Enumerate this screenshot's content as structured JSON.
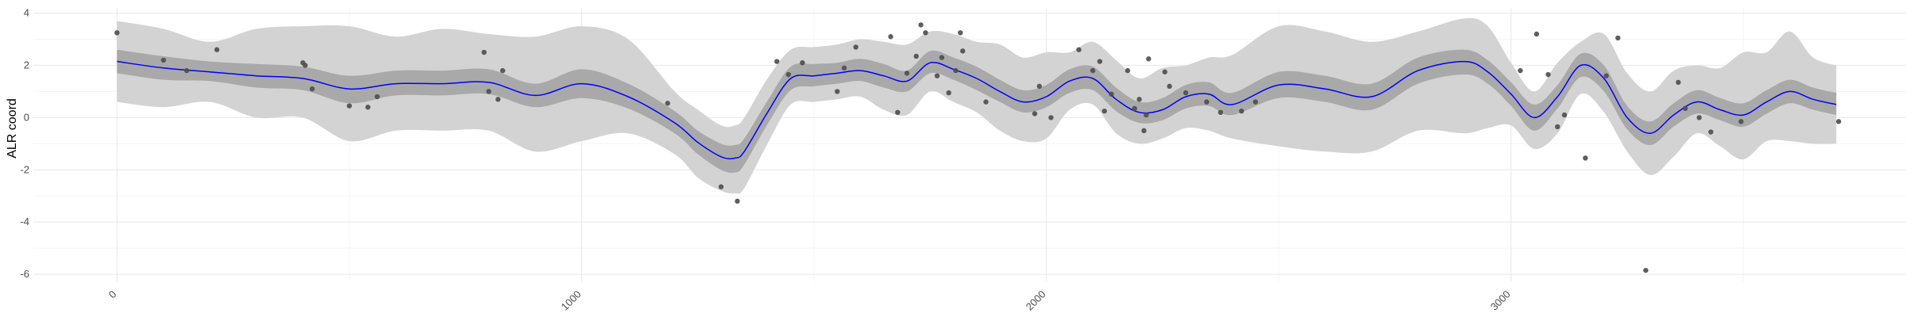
{
  "chart_data": {
    "type": "line",
    "title": "",
    "xlabel": "",
    "ylabel": "ALR coord",
    "xlim": [
      -180,
      3850
    ],
    "ylim": [
      -6.3,
      4.2
    ],
    "x_ticks": [
      0,
      1000,
      2000,
      3000
    ],
    "y_ticks": [
      -6,
      -4,
      -2,
      0,
      2,
      4
    ],
    "grid": true,
    "legend": "none",
    "colors": {
      "mean_line": "#0000ff",
      "inner_band": "#a9a9a9",
      "outer_band": "#d3d3d3",
      "points": "#4d4d4d",
      "grid_major": "#ebebeb",
      "grid_minor": "#f5f5f5"
    },
    "series": [
      {
        "kind": "mean",
        "x": [
          0,
          100,
          200,
          300,
          400,
          500,
          600,
          700,
          800,
          900,
          1000,
          1100,
          1200,
          1250,
          1300,
          1330,
          1350,
          1400,
          1450,
          1500,
          1550,
          1600,
          1650,
          1700,
          1750,
          1800,
          1850,
          1900,
          1950,
          2000,
          2050,
          2100,
          2150,
          2200,
          2250,
          2300,
          2350,
          2400,
          2500,
          2600,
          2700,
          2800,
          2900,
          2950,
          3000,
          3050,
          3100,
          3150,
          3200,
          3250,
          3300,
          3350,
          3400,
          3450,
          3500,
          3550,
          3600,
          3650,
          3700
        ],
        "y": [
          2.15,
          1.9,
          1.75,
          1.6,
          1.5,
          1.1,
          1.3,
          1.3,
          1.35,
          0.85,
          1.3,
          0.8,
          -0.2,
          -0.95,
          -1.5,
          -1.55,
          -1.3,
          0.2,
          1.5,
          1.6,
          1.7,
          1.8,
          1.6,
          1.4,
          2.1,
          1.85,
          1.5,
          1.0,
          0.6,
          0.8,
          1.4,
          1.5,
          0.7,
          0.2,
          0.3,
          0.8,
          0.9,
          0.5,
          1.25,
          1.1,
          0.8,
          1.8,
          2.15,
          1.75,
          0.9,
          0.0,
          0.8,
          2.0,
          1.5,
          0.0,
          -0.6,
          0.1,
          0.6,
          0.3,
          0.1,
          0.6,
          1.0,
          0.7,
          0.5
        ]
      },
      {
        "kind": "inner_band",
        "x": [
          0,
          100,
          200,
          300,
          400,
          500,
          600,
          700,
          800,
          900,
          1000,
          1100,
          1200,
          1250,
          1300,
          1330,
          1350,
          1400,
          1450,
          1500,
          1550,
          1600,
          1650,
          1700,
          1750,
          1800,
          1850,
          1900,
          1950,
          2000,
          2050,
          2100,
          2150,
          2200,
          2250,
          2300,
          2350,
          2400,
          2500,
          2600,
          2700,
          2800,
          2900,
          2950,
          3000,
          3050,
          3100,
          3150,
          3200,
          3250,
          3300,
          3350,
          3400,
          3450,
          3500,
          3550,
          3600,
          3650,
          3700
        ],
        "lower": [
          1.7,
          1.45,
          1.4,
          1.15,
          1.05,
          0.55,
          0.85,
          0.85,
          0.9,
          0.4,
          0.75,
          0.35,
          -0.6,
          -1.4,
          -2.0,
          -2.1,
          -1.8,
          -0.25,
          1.05,
          1.2,
          1.3,
          1.4,
          1.15,
          1.0,
          1.7,
          1.45,
          1.05,
          0.6,
          0.2,
          0.4,
          0.95,
          1.05,
          0.25,
          -0.2,
          -0.1,
          0.35,
          0.45,
          0.1,
          0.75,
          0.6,
          0.3,
          1.3,
          1.65,
          1.3,
          0.45,
          -0.5,
          0.35,
          1.55,
          1.0,
          -0.45,
          -1.05,
          -0.35,
          0.15,
          -0.1,
          -0.35,
          0.15,
          0.55,
          0.3,
          0.1
        ],
        "upper": [
          2.6,
          2.35,
          2.15,
          2.05,
          1.95,
          1.6,
          1.8,
          1.8,
          1.85,
          1.3,
          1.85,
          1.3,
          0.25,
          -0.5,
          -1.0,
          -1.05,
          -0.8,
          0.65,
          1.95,
          2.05,
          2.1,
          2.25,
          2.05,
          1.8,
          2.55,
          2.3,
          1.95,
          1.45,
          1.05,
          1.25,
          1.85,
          1.95,
          1.15,
          0.6,
          0.75,
          1.25,
          1.35,
          0.95,
          1.75,
          1.6,
          1.3,
          2.3,
          2.6,
          2.2,
          1.35,
          0.5,
          1.25,
          2.45,
          2.0,
          0.45,
          -0.15,
          0.55,
          1.05,
          0.75,
          0.55,
          1.05,
          1.45,
          1.15,
          0.95
        ]
      },
      {
        "kind": "outer_band",
        "x": [
          0,
          100,
          200,
          300,
          400,
          500,
          600,
          700,
          800,
          900,
          1000,
          1100,
          1200,
          1250,
          1300,
          1330,
          1350,
          1400,
          1450,
          1500,
          1550,
          1600,
          1650,
          1700,
          1750,
          1800,
          1850,
          1900,
          1950,
          2000,
          2050,
          2100,
          2150,
          2200,
          2250,
          2300,
          2350,
          2400,
          2500,
          2600,
          2700,
          2800,
          2900,
          2950,
          3000,
          3050,
          3100,
          3150,
          3200,
          3250,
          3300,
          3350,
          3400,
          3450,
          3500,
          3550,
          3600,
          3650,
          3700
        ],
        "lower": [
          0.6,
          0.4,
          0.6,
          0.0,
          0.0,
          -0.9,
          -0.5,
          -0.5,
          -0.5,
          -1.3,
          -0.9,
          -0.6,
          -1.4,
          -2.3,
          -2.8,
          -2.9,
          -2.7,
          -1.0,
          0.5,
          0.6,
          0.7,
          0.8,
          0.3,
          0.1,
          1.0,
          0.6,
          0.2,
          -0.5,
          -0.9,
          -0.8,
          0.3,
          0.5,
          -0.6,
          -1.0,
          -0.8,
          -0.4,
          -0.5,
          -0.8,
          -1.1,
          -1.3,
          -1.3,
          -0.5,
          -0.6,
          -0.4,
          -0.3,
          -1.2,
          -0.6,
          0.9,
          0.2,
          -1.3,
          -2.2,
          -1.5,
          -0.6,
          -1.1,
          -1.6,
          -0.9,
          -0.9,
          -1.0,
          -1.0
        ],
        "upper": [
          3.7,
          3.4,
          2.9,
          3.4,
          3.5,
          3.5,
          3.1,
          3.4,
          3.2,
          3.1,
          3.5,
          3.0,
          1.0,
          0.3,
          -0.3,
          -0.3,
          0.0,
          1.5,
          2.6,
          2.7,
          2.8,
          3.0,
          2.9,
          2.8,
          3.3,
          3.2,
          2.9,
          2.8,
          2.3,
          2.5,
          2.5,
          2.9,
          2.2,
          1.5,
          1.9,
          2.0,
          2.3,
          2.4,
          3.5,
          3.3,
          2.9,
          3.3,
          3.8,
          3.5,
          2.1,
          1.0,
          2.1,
          2.9,
          3.2,
          1.7,
          1.0,
          1.8,
          2.0,
          1.9,
          2.5,
          2.5,
          3.3,
          2.3,
          2.0
        ]
      },
      {
        "kind": "points",
        "x": [
          0,
          100,
          150,
          215,
          405,
          420,
          400,
          500,
          540,
          560,
          790,
          800,
          820,
          830,
          1185,
          1300,
          1335,
          1420,
          1445,
          1475,
          1550,
          1565,
          1590,
          1665,
          1680,
          1700,
          1720,
          1730,
          1740,
          1765,
          1775,
          1790,
          1805,
          1815,
          1820,
          1870,
          1975,
          1985,
          2010,
          2070,
          2100,
          2115,
          2125,
          2140,
          2175,
          2190,
          2200,
          2210,
          2215,
          2220,
          2255,
          2265,
          2300,
          2345,
          2375,
          2420,
          2450,
          3020,
          3055,
          3080,
          3100,
          3115,
          3160,
          3205,
          3230,
          3290,
          3360,
          3375,
          3405,
          3430,
          3495,
          3705
        ],
        "y": [
          3.25,
          2.2,
          1.8,
          2.6,
          2.0,
          1.1,
          2.1,
          0.45,
          0.4,
          0.8,
          2.5,
          1.0,
          0.7,
          1.8,
          0.55,
          -2.65,
          -3.2,
          2.15,
          1.65,
          2.1,
          1.0,
          1.9,
          2.7,
          3.1,
          0.2,
          1.7,
          2.35,
          3.55,
          3.25,
          1.6,
          2.3,
          0.95,
          1.8,
          3.25,
          2.55,
          0.6,
          0.15,
          1.2,
          0.0,
          2.6,
          1.8,
          2.15,
          0.25,
          0.9,
          1.8,
          0.35,
          0.7,
          -0.5,
          0.1,
          2.25,
          1.75,
          1.2,
          0.95,
          0.6,
          0.2,
          0.25,
          0.6,
          1.8,
          3.2,
          1.65,
          -0.35,
          0.1,
          -1.55,
          1.6,
          3.05,
          -5.85,
          1.35,
          0.35,
          0.0,
          -0.55,
          -0.15,
          -0.15
        ]
      }
    ]
  }
}
